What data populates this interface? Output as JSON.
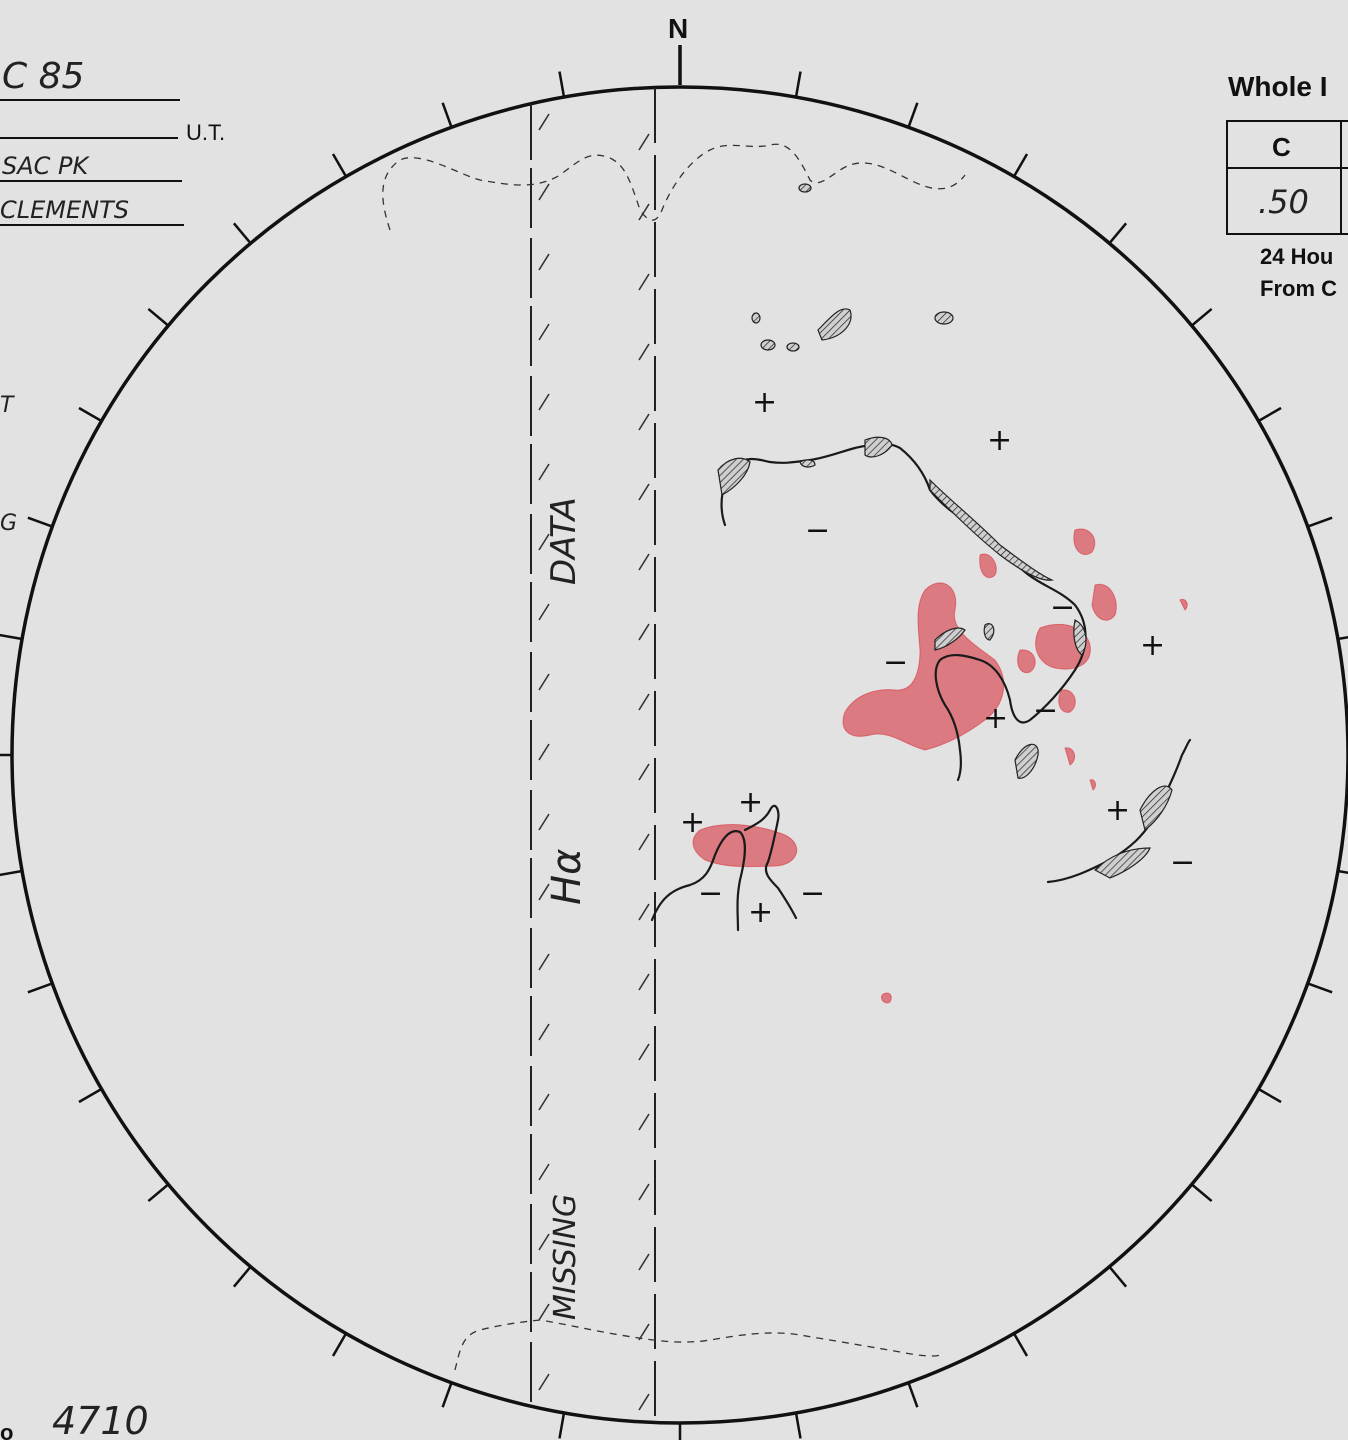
{
  "header": {
    "date_text": "C 85",
    "time_suffix": "U.T.",
    "observatory_text": "SAC PK",
    "observer_text": "CLEMENTS"
  },
  "side_labels": {
    "left_upper": "T",
    "left_mid": "G"
  },
  "compass": {
    "north": "N"
  },
  "title_partial": "Whole I",
  "table": {
    "header": "C",
    "value": ".50"
  },
  "caption": {
    "line1": "24 Hou",
    "line2": "From C"
  },
  "annotations": {
    "data_label": "DATA",
    "halpha_label": "Hα",
    "missing_label": "MISSING"
  },
  "footer": {
    "prefix": "o",
    "number": "4710"
  },
  "colors": {
    "ink": "#1a1a1a",
    "plage_red": "#d5252f",
    "paper": "#e2e2e2"
  }
}
